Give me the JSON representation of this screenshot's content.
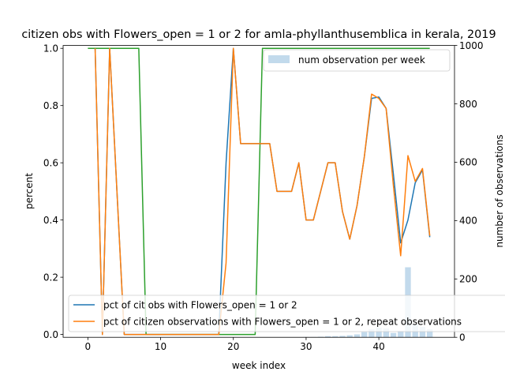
{
  "chart_data": {
    "type": "line",
    "title": "citizen obs with Flowers_open = 1 or 2 for amla-phyllanthusemblica in kerala, 2019",
    "xlabel": "week index",
    "ylabel": "percent",
    "y2label": "number of observations",
    "xlim": [
      -3.4,
      50.4
    ],
    "ylim": [
      -0.01,
      1.01
    ],
    "y2lim": [
      0,
      1000
    ],
    "xticks": [
      0,
      10,
      20,
      30,
      40
    ],
    "yticks": [
      0.0,
      0.2,
      0.4,
      0.6,
      0.8,
      1.0
    ],
    "y2ticks": [
      0,
      200,
      400,
      600,
      800,
      1000
    ],
    "grid": false,
    "x": [
      0,
      1,
      2,
      3,
      4,
      5,
      6,
      7,
      8,
      9,
      10,
      11,
      12,
      13,
      14,
      15,
      16,
      17,
      18,
      19,
      20,
      21,
      22,
      23,
      24,
      25,
      26,
      27,
      28,
      29,
      30,
      31,
      32,
      33,
      34,
      35,
      36,
      37,
      38,
      39,
      40,
      41,
      42,
      43,
      44,
      45,
      46,
      47
    ],
    "series": [
      {
        "name": "pct of cit obs with Flowers_open = 1 or 2",
        "axis": "left",
        "color": "#1f77b4",
        "values": [
          null,
          1.0,
          0.0,
          1.0,
          0.5,
          0.0,
          0.0,
          0.0,
          0.0,
          0.0,
          0.0,
          0.0,
          0.0,
          0.0,
          0.0,
          0.0,
          0.0,
          0.0,
          0.0,
          0.6,
          1.0,
          0.667,
          0.667,
          0.667,
          0.667,
          0.667,
          0.5,
          0.5,
          0.5,
          0.6,
          0.4,
          0.4,
          0.5,
          0.6,
          0.6,
          0.43,
          0.333,
          0.45,
          0.62,
          0.825,
          0.83,
          0.79,
          0.56,
          0.32,
          0.4,
          0.53,
          0.575,
          0.34
        ]
      },
      {
        "name": "pct of citizen observations with Flowers_open = 1 or 2, repeat observations",
        "axis": "left",
        "color": "#ff7f0e",
        "values": [
          null,
          1.0,
          0.0,
          1.0,
          0.5,
          0.0,
          0.0,
          0.0,
          0.0,
          0.0,
          0.0,
          0.0,
          0.0,
          0.0,
          0.0,
          0.0,
          0.0,
          0.0,
          0.0,
          0.25,
          1.0,
          0.667,
          0.667,
          0.667,
          0.667,
          0.667,
          0.5,
          0.5,
          0.5,
          0.6,
          0.4,
          0.4,
          0.5,
          0.6,
          0.6,
          0.43,
          0.333,
          0.45,
          0.62,
          0.84,
          0.825,
          0.79,
          0.52,
          0.275,
          0.625,
          0.535,
          0.58,
          0.345
        ]
      },
      {
        "name": "",
        "axis": "left",
        "color": "#2ca02c",
        "values": [
          1,
          1,
          1,
          1,
          1,
          1,
          1,
          1,
          0,
          0,
          0,
          0,
          0,
          0,
          0,
          0,
          0,
          0,
          0,
          0,
          0,
          0,
          0,
          0,
          1,
          1,
          1,
          1,
          1,
          1,
          1,
          1,
          1,
          1,
          1,
          1,
          1,
          1,
          1,
          1,
          1,
          1,
          1,
          1,
          1,
          1,
          1,
          1
        ]
      },
      {
        "name": "num observation per week",
        "axis": "right",
        "type": "bar",
        "color": "#aecde6",
        "values": [
          0,
          0,
          0,
          0,
          0,
          0,
          0,
          0,
          0,
          0,
          0,
          0,
          0,
          0,
          0,
          0,
          0,
          0,
          0,
          0,
          0,
          0,
          0,
          0,
          0,
          0,
          0,
          0,
          0,
          0,
          1,
          1,
          2,
          4,
          4,
          5,
          7,
          10,
          18,
          28,
          33,
          30,
          15,
          22,
          240,
          45,
          36,
          28
        ]
      }
    ],
    "legend_upper": {
      "placement": "upper-right",
      "entries": [
        "num observation per week"
      ]
    },
    "legend_lower": {
      "placement": "lower-center",
      "entries": [
        "pct of cit obs with Flowers_open = 1 or 2",
        "pct of citizen observations with Flowers_open = 1 or 2, repeat observations"
      ]
    }
  }
}
